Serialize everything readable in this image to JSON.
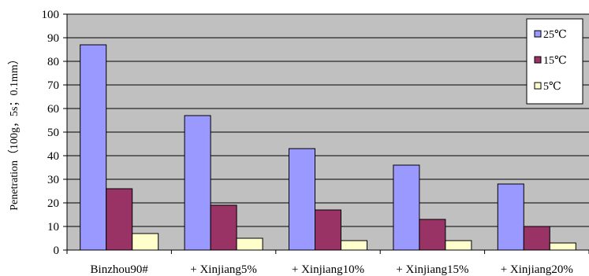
{
  "chart_data": {
    "type": "bar",
    "categories": [
      "Binzhou90#",
      "+ Xinjiang5%",
      "+ Xinjiang10%",
      "+ Xinjiang15%",
      "+ Xinjiang20%"
    ],
    "series": [
      {
        "name": "25℃",
        "values": [
          87,
          57,
          43,
          36,
          28
        ],
        "color": "#9999ff"
      },
      {
        "name": "15℃",
        "values": [
          26,
          19,
          17,
          13,
          10
        ],
        "color": "#993366"
      },
      {
        "name": "5℃",
        "values": [
          7,
          5,
          4,
          4,
          3
        ],
        "color": "#ffffcc"
      }
    ],
    "ylabel": "Penetration（100g，5s；0.1mm）",
    "ylim": [
      0,
      100
    ],
    "yticks": [
      0,
      10,
      20,
      30,
      40,
      50,
      60,
      70,
      80,
      90,
      100
    ],
    "grid": true,
    "legend_position": "right",
    "plot_background": "#c0c0c0"
  }
}
